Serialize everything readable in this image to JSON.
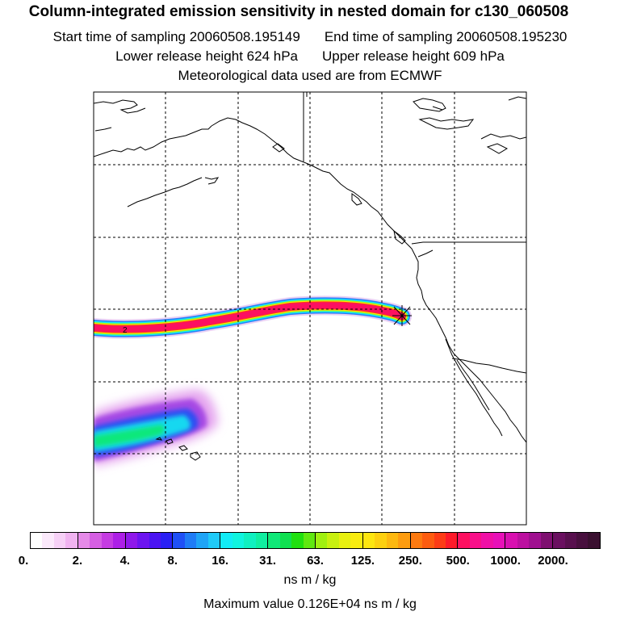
{
  "title": {
    "line1": "Column-integrated emission sensitivity in nested domain for c130_060508",
    "start_label": "Start time of sampling 20060508.195149",
    "end_label": "End time of sampling 20060508.195230",
    "lower_label": "Lower release height  624 hPa",
    "upper_label": "Upper release height  609 hPa",
    "met_label": "Meteorological data used are from ECMWF"
  },
  "map": {
    "release_marker": "release-star",
    "plume_label": "2"
  },
  "colorbar": {
    "ticks": [
      "0.",
      "2.",
      "4.",
      "8.",
      "16.",
      "31.",
      "63.",
      "125.",
      "250.",
      "500.",
      "1000.",
      "2000."
    ],
    "segments": [
      [
        "#ffffff",
        "#fbe9fb",
        "#f6d0f6",
        "#f0b3f0"
      ],
      [
        "#e58ae8",
        "#d55fe3",
        "#c53ce2",
        "#ad1fe6"
      ],
      [
        "#8f18ea",
        "#6d14f0",
        "#4b14f2",
        "#2a20f4"
      ],
      [
        "#1f50f6",
        "#1f7cf6",
        "#1fa4f6",
        "#1fcaf8"
      ],
      [
        "#12ecf6",
        "#10f4df",
        "#10f0c0",
        "#10eea0"
      ],
      [
        "#10e878",
        "#10e050",
        "#20e010",
        "#60e810"
      ],
      [
        "#a0f010",
        "#c8f010",
        "#e8f010",
        "#f8ec10"
      ],
      [
        "#fde610",
        "#fdd010",
        "#fdb810",
        "#fd9c10"
      ],
      [
        "#fd7a10",
        "#fd5c10",
        "#fd3c16",
        "#fd1a2a"
      ],
      [
        "#fd1060",
        "#f8108a",
        "#f010a6",
        "#e810b8"
      ],
      [
        "#d810b0",
        "#bc10a0",
        "#a01090",
        "#7e1070"
      ],
      [
        "#6a1060",
        "#58104e",
        "#48103e",
        "#3a1030"
      ]
    ]
  },
  "units": "ns m / kg",
  "max_value": "Maximum value  0.126E+04 ns m / kg"
}
